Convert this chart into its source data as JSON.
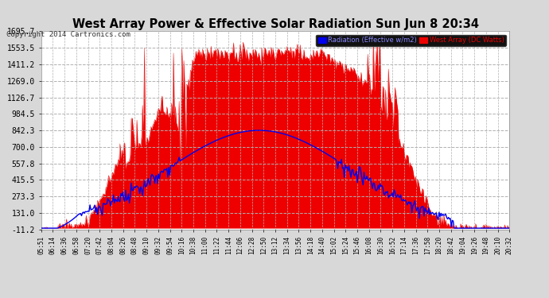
{
  "title": "West Array Power & Effective Solar Radiation Sun Jun 8 20:34",
  "copyright": "Copyright 2014 Cartronics.com",
  "legend_radiation": "Radiation (Effective w/m2)",
  "legend_west": "West Array (DC Watts)",
  "y_ticks": [
    -11.2,
    131.0,
    273.3,
    415.5,
    557.8,
    700.0,
    842.3,
    984.5,
    1126.7,
    1269.0,
    1411.2,
    1553.5,
    1695.7
  ],
  "bg_color": "#d8d8d8",
  "plot_bg_color": "#ffffff",
  "grid_color": "#b0b0b0",
  "red_color": "#ee0000",
  "blue_color": "#0000ee",
  "title_color": "#000000",
  "x_tick_labels": [
    "05:51",
    "06:14",
    "06:36",
    "06:58",
    "07:20",
    "07:42",
    "08:04",
    "08:26",
    "08:48",
    "09:10",
    "09:32",
    "09:54",
    "10:16",
    "10:38",
    "11:00",
    "11:22",
    "11:44",
    "12:06",
    "12:28",
    "12:50",
    "13:12",
    "13:34",
    "13:56",
    "14:18",
    "14:40",
    "15:02",
    "15:24",
    "15:46",
    "16:08",
    "16:30",
    "16:52",
    "17:14",
    "17:36",
    "17:58",
    "18:20",
    "18:42",
    "19:04",
    "19:26",
    "19:48",
    "20:10",
    "20:32"
  ],
  "n_points": 500,
  "ymin": -11.2,
  "ymax": 1695.7
}
